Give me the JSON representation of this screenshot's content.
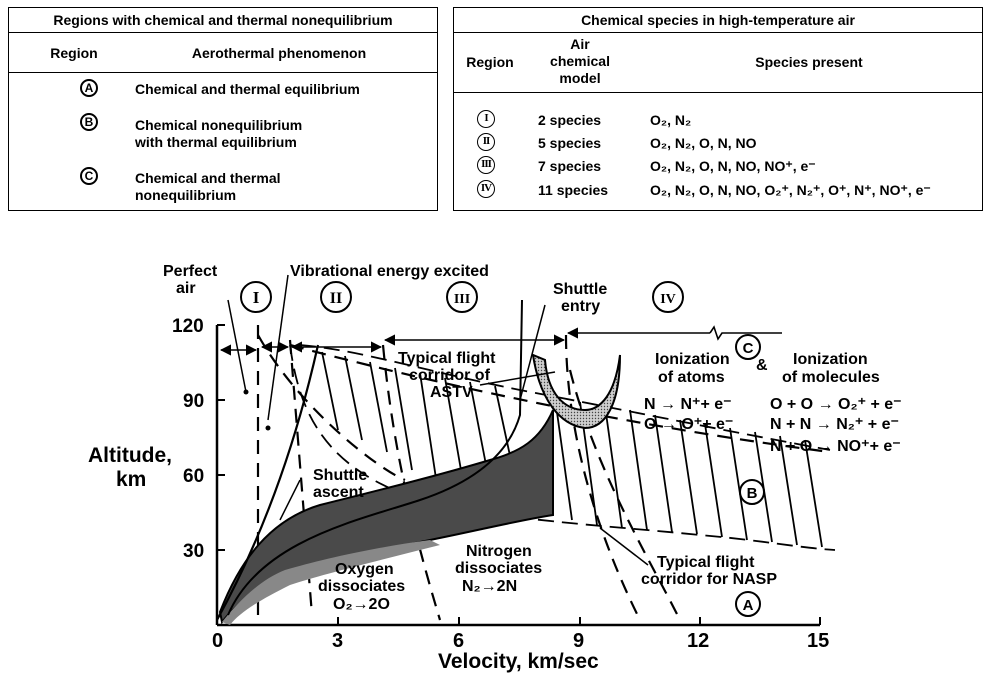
{
  "left_table": {
    "title": "Regions with chemical and thermal nonequilibrium",
    "col_region": "Region",
    "col_phenomenon": "Aerothermal phenomenon",
    "rows": [
      {
        "symbol": "A",
        "lines": [
          "Chemical and thermal equilibrium"
        ]
      },
      {
        "symbol": "B",
        "lines": [
          "Chemical nonequilibrium",
          "with thermal equilibrium"
        ]
      },
      {
        "symbol": "C",
        "lines": [
          "Chemical and thermal",
          "nonequilibrium"
        ]
      }
    ]
  },
  "right_table": {
    "title": "Chemical species in high-temperature air",
    "col_region": "Region",
    "col_model": [
      "Air",
      "chemical",
      "model"
    ],
    "col_species": "Species present",
    "rows": [
      {
        "symbol": "I",
        "model": "2 species",
        "species": "O₂, N₂"
      },
      {
        "symbol": "II",
        "model": "5 species",
        "species": "O₂, N₂, O, N, NO"
      },
      {
        "symbol": "III",
        "model": "7 species",
        "species": "O₂, N₂, O, N, NO, NO⁺, e⁻"
      },
      {
        "symbol": "IV",
        "model": "11 species",
        "species": "O₂, N₂, O, N, NO, O₂⁺, N₂⁺, O⁺, N⁺, NO⁺, e⁻"
      }
    ]
  },
  "figure": {
    "xlabel": "Velocity, km/sec",
    "ylabel": [
      "Altitude,",
      "km"
    ],
    "x_ticks": [
      "0",
      "3",
      "6",
      "9",
      "12",
      "15"
    ],
    "y_ticks": [
      "30",
      "60",
      "90",
      "120"
    ],
    "labels": {
      "perfect_air": [
        "Perfect",
        "air"
      ],
      "vibrational": "Vibrational energy excited",
      "shuttle_entry": [
        "Shuttle",
        "entry"
      ],
      "astv": [
        "Typical flight",
        "corridor of",
        "ASTV"
      ],
      "shuttle_ascent": [
        "Shuttle",
        "ascent"
      ],
      "oxygen": [
        "Oxygen",
        "dissociates",
        "O₂→2O"
      ],
      "nitrogen": [
        "Nitrogen",
        "dissociates",
        "N₂→2N"
      ],
      "nasp": [
        "Typical flight",
        "corridor for NASP"
      ],
      "ion_atoms_title": [
        "Ionization",
        "of atoms"
      ],
      "ion_atoms_eqs": [
        "N → N⁺+ e⁻",
        "O → O⁺+ e⁻"
      ],
      "ion_mol_title": [
        "Ionization",
        "of molecules"
      ],
      "ion_mol_eqs": [
        "O + O → O₂⁺ + e⁻",
        "N + N → N₂⁺ + e⁻",
        "N + O → NO⁺+ e⁻"
      ],
      "amp": "&"
    },
    "region_marks": {
      "I": "I",
      "II": "II",
      "III": "III",
      "IV": "IV",
      "A": "A",
      "B": "B",
      "C": "C"
    }
  },
  "colors": {
    "ink": "#000000",
    "paper": "#ffffff",
    "corridor_dark": "#555555",
    "shuttle_fill": "#c8c8c8"
  }
}
